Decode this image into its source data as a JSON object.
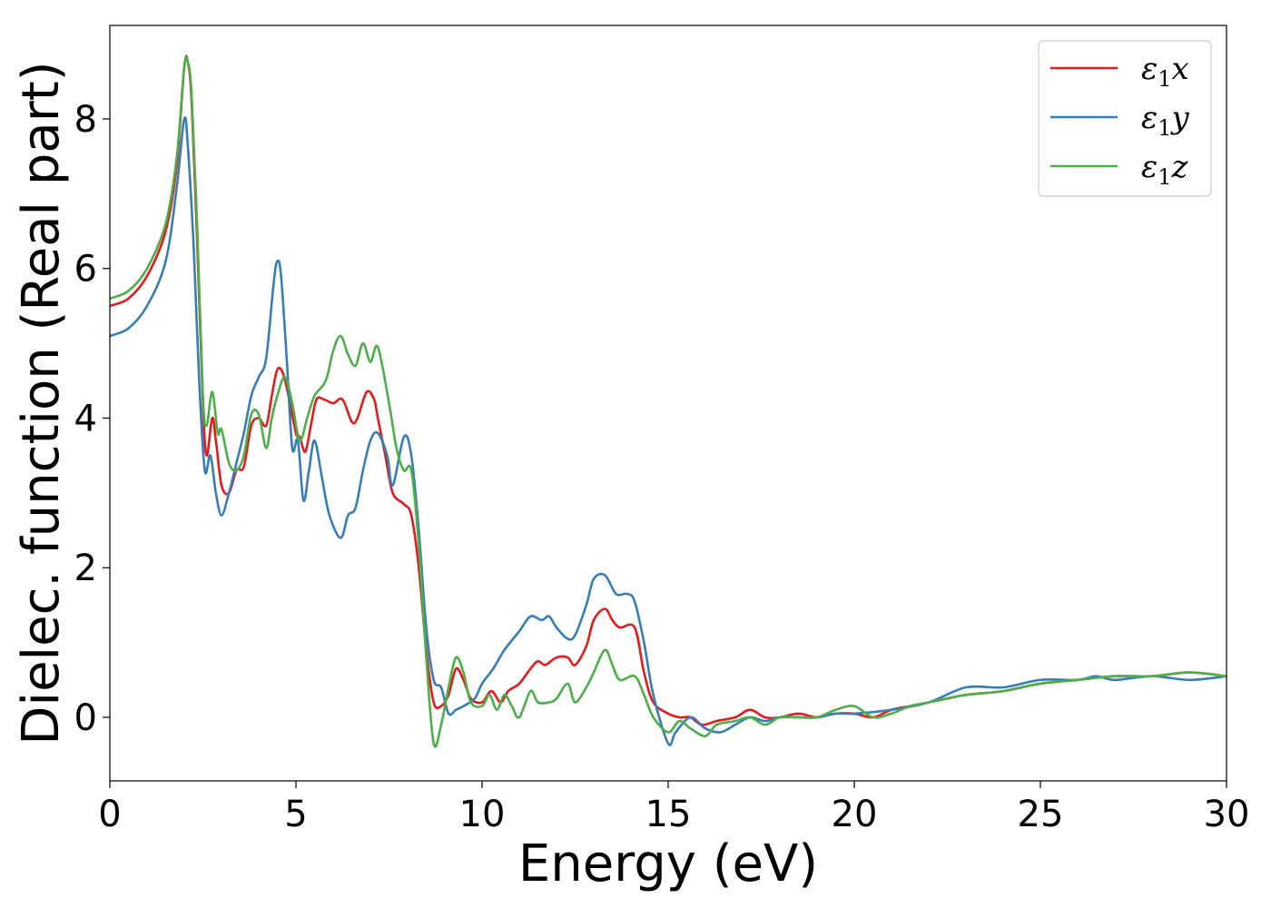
{
  "chart_data": {
    "type": "line",
    "title": "",
    "xlabel": "Energy (eV)",
    "ylabel": "Dielec. function (Real part)",
    "xlim": [
      0,
      30
    ],
    "ylim": [
      -0.85,
      9.25
    ],
    "xticks": [
      0,
      5,
      10,
      15,
      20,
      25,
      30
    ],
    "yticks": [
      0,
      2,
      4,
      6,
      8
    ],
    "grid": false,
    "legend_position": "top-right",
    "series": [
      {
        "name": "ε₁x",
        "legend_base": "ε",
        "legend_sub": "1",
        "legend_suffix": "x",
        "color": "#e41a1c",
        "points": [
          [
            0,
            5.5
          ],
          [
            0.5,
            5.6
          ],
          [
            1.0,
            5.9
          ],
          [
            1.5,
            6.5
          ],
          [
            1.8,
            7.4
          ],
          [
            2.0,
            8.7
          ],
          [
            2.1,
            8.75
          ],
          [
            2.2,
            8.2
          ],
          [
            2.35,
            6.3
          ],
          [
            2.5,
            4.2
          ],
          [
            2.6,
            3.5
          ],
          [
            2.75,
            4.0
          ],
          [
            2.85,
            3.7
          ],
          [
            3.0,
            3.1
          ],
          [
            3.2,
            3.0
          ],
          [
            3.4,
            3.3
          ],
          [
            3.6,
            3.35
          ],
          [
            3.8,
            3.9
          ],
          [
            4.0,
            4.0
          ],
          [
            4.2,
            3.9
          ],
          [
            4.35,
            4.3
          ],
          [
            4.5,
            4.65
          ],
          [
            4.65,
            4.6
          ],
          [
            4.8,
            4.3
          ],
          [
            5.0,
            3.8
          ],
          [
            5.1,
            3.75
          ],
          [
            5.25,
            3.55
          ],
          [
            5.4,
            3.9
          ],
          [
            5.55,
            4.25
          ],
          [
            5.75,
            4.25
          ],
          [
            6.0,
            4.2
          ],
          [
            6.25,
            4.25
          ],
          [
            6.5,
            3.95
          ],
          [
            6.65,
            4.0
          ],
          [
            6.9,
            4.35
          ],
          [
            7.1,
            4.25
          ],
          [
            7.2,
            4.0
          ],
          [
            7.4,
            3.5
          ],
          [
            7.6,
            3.0
          ],
          [
            7.9,
            2.85
          ],
          [
            8.1,
            2.7
          ],
          [
            8.3,
            2.0
          ],
          [
            8.5,
            0.9
          ],
          [
            8.7,
            0.2
          ],
          [
            8.9,
            0.15
          ],
          [
            9.1,
            0.3
          ],
          [
            9.3,
            0.65
          ],
          [
            9.5,
            0.5
          ],
          [
            9.7,
            0.25
          ],
          [
            10.0,
            0.2
          ],
          [
            10.25,
            0.35
          ],
          [
            10.5,
            0.2
          ],
          [
            10.7,
            0.35
          ],
          [
            11.0,
            0.45
          ],
          [
            11.3,
            0.65
          ],
          [
            11.5,
            0.75
          ],
          [
            11.7,
            0.7
          ],
          [
            12.0,
            0.8
          ],
          [
            12.3,
            0.8
          ],
          [
            12.5,
            0.7
          ],
          [
            12.8,
            0.95
          ],
          [
            13.0,
            1.3
          ],
          [
            13.3,
            1.45
          ],
          [
            13.5,
            1.3
          ],
          [
            13.7,
            1.2
          ],
          [
            14.1,
            1.2
          ],
          [
            14.35,
            0.6
          ],
          [
            14.6,
            0.2
          ],
          [
            15.0,
            0.05
          ],
          [
            15.3,
            0.0
          ],
          [
            15.6,
            0.0
          ],
          [
            15.9,
            -0.1
          ],
          [
            16.3,
            -0.05
          ],
          [
            16.8,
            0.0
          ],
          [
            17.2,
            0.1
          ],
          [
            17.6,
            0.0
          ],
          [
            18.0,
            0.0
          ],
          [
            18.5,
            0.05
          ],
          [
            19.0,
            0.0
          ],
          [
            19.5,
            0.05
          ],
          [
            20.0,
            0.05
          ],
          [
            20.5,
            0.0
          ],
          [
            21.0,
            0.1
          ],
          [
            21.5,
            0.15
          ],
          [
            22.0,
            0.2
          ],
          [
            22.5,
            0.25
          ],
          [
            23.0,
            0.3
          ],
          [
            24.0,
            0.35
          ],
          [
            25.0,
            0.45
          ],
          [
            26.0,
            0.5
          ],
          [
            27.0,
            0.55
          ],
          [
            28.0,
            0.55
          ],
          [
            29.0,
            0.6
          ],
          [
            30.0,
            0.55
          ]
        ]
      },
      {
        "name": "ε₁y",
        "legend_base": "ε",
        "legend_sub": "1",
        "legend_suffix": "y",
        "color": "#377eb8",
        "points": [
          [
            0,
            5.1
          ],
          [
            0.5,
            5.2
          ],
          [
            1.0,
            5.5
          ],
          [
            1.5,
            6.1
          ],
          [
            1.8,
            7.1
          ],
          [
            2.0,
            8.0
          ],
          [
            2.1,
            7.6
          ],
          [
            2.25,
            6.3
          ],
          [
            2.4,
            4.5
          ],
          [
            2.55,
            3.3
          ],
          [
            2.7,
            3.5
          ],
          [
            2.85,
            3.0
          ],
          [
            3.0,
            2.7
          ],
          [
            3.2,
            3.0
          ],
          [
            3.4,
            3.4
          ],
          [
            3.6,
            3.8
          ],
          [
            3.8,
            4.3
          ],
          [
            4.0,
            4.55
          ],
          [
            4.2,
            4.8
          ],
          [
            4.4,
            5.8
          ],
          [
            4.5,
            6.1
          ],
          [
            4.6,
            5.9
          ],
          [
            4.75,
            4.8
          ],
          [
            4.9,
            3.6
          ],
          [
            5.05,
            3.7
          ],
          [
            5.2,
            2.9
          ],
          [
            5.35,
            3.3
          ],
          [
            5.5,
            3.7
          ],
          [
            5.7,
            3.2
          ],
          [
            5.9,
            2.7
          ],
          [
            6.2,
            2.4
          ],
          [
            6.4,
            2.7
          ],
          [
            6.6,
            2.8
          ],
          [
            6.8,
            3.3
          ],
          [
            7.0,
            3.7
          ],
          [
            7.2,
            3.8
          ],
          [
            7.45,
            3.5
          ],
          [
            7.6,
            3.1
          ],
          [
            7.9,
            3.75
          ],
          [
            8.1,
            3.5
          ],
          [
            8.3,
            2.5
          ],
          [
            8.5,
            1.2
          ],
          [
            8.7,
            0.5
          ],
          [
            8.9,
            0.4
          ],
          [
            9.1,
            0.05
          ],
          [
            9.3,
            0.1
          ],
          [
            9.5,
            0.15
          ],
          [
            9.8,
            0.25
          ],
          [
            10.0,
            0.45
          ],
          [
            10.3,
            0.65
          ],
          [
            10.6,
            0.9
          ],
          [
            11.0,
            1.15
          ],
          [
            11.3,
            1.35
          ],
          [
            11.6,
            1.3
          ],
          [
            11.8,
            1.35
          ],
          [
            12.0,
            1.2
          ],
          [
            12.3,
            1.05
          ],
          [
            12.5,
            1.1
          ],
          [
            12.8,
            1.5
          ],
          [
            13.0,
            1.85
          ],
          [
            13.3,
            1.9
          ],
          [
            13.6,
            1.65
          ],
          [
            13.9,
            1.65
          ],
          [
            14.1,
            1.55
          ],
          [
            14.35,
            1.0
          ],
          [
            14.6,
            0.3
          ],
          [
            15.0,
            -0.35
          ],
          [
            15.2,
            -0.2
          ],
          [
            15.6,
            0.0
          ],
          [
            16.0,
            -0.15
          ],
          [
            16.4,
            -0.2
          ],
          [
            16.8,
            -0.1
          ],
          [
            17.2,
            0.0
          ],
          [
            17.6,
            -0.05
          ],
          [
            18.0,
            0.0
          ],
          [
            18.5,
            0.0
          ],
          [
            19.0,
            0.0
          ],
          [
            19.5,
            0.05
          ],
          [
            20.0,
            0.05
          ],
          [
            21.0,
            0.1
          ],
          [
            22.0,
            0.2
          ],
          [
            23.0,
            0.4
          ],
          [
            24.0,
            0.4
          ],
          [
            25.0,
            0.5
          ],
          [
            26.0,
            0.5
          ],
          [
            26.5,
            0.55
          ],
          [
            27.0,
            0.5
          ],
          [
            28.0,
            0.55
          ],
          [
            29.0,
            0.5
          ],
          [
            30.0,
            0.55
          ]
        ]
      },
      {
        "name": "ε₁z",
        "legend_base": "ε",
        "legend_sub": "1",
        "legend_suffix": "z",
        "color": "#4daf4a",
        "points": [
          [
            0,
            5.6
          ],
          [
            0.5,
            5.7
          ],
          [
            1.0,
            6.0
          ],
          [
            1.5,
            6.6
          ],
          [
            1.8,
            7.5
          ],
          [
            2.0,
            8.7
          ],
          [
            2.1,
            8.75
          ],
          [
            2.2,
            8.3
          ],
          [
            2.35,
            6.5
          ],
          [
            2.5,
            4.3
          ],
          [
            2.6,
            3.9
          ],
          [
            2.75,
            4.35
          ],
          [
            2.9,
            3.8
          ],
          [
            3.0,
            3.85
          ],
          [
            3.2,
            3.4
          ],
          [
            3.4,
            3.3
          ],
          [
            3.6,
            3.5
          ],
          [
            3.8,
            4.05
          ],
          [
            4.0,
            4.05
          ],
          [
            4.2,
            3.6
          ],
          [
            4.35,
            4.0
          ],
          [
            4.5,
            4.3
          ],
          [
            4.7,
            4.55
          ],
          [
            4.9,
            4.2
          ],
          [
            5.1,
            3.7
          ],
          [
            5.3,
            4.0
          ],
          [
            5.5,
            4.3
          ],
          [
            5.8,
            4.5
          ],
          [
            6.0,
            4.9
          ],
          [
            6.2,
            5.1
          ],
          [
            6.4,
            4.85
          ],
          [
            6.6,
            4.7
          ],
          [
            6.8,
            5.0
          ],
          [
            7.0,
            4.75
          ],
          [
            7.2,
            4.95
          ],
          [
            7.5,
            4.2
          ],
          [
            7.7,
            3.6
          ],
          [
            7.9,
            3.3
          ],
          [
            8.1,
            3.3
          ],
          [
            8.3,
            2.3
          ],
          [
            8.5,
            0.8
          ],
          [
            8.7,
            -0.35
          ],
          [
            8.9,
            -0.1
          ],
          [
            9.1,
            0.4
          ],
          [
            9.3,
            0.8
          ],
          [
            9.5,
            0.6
          ],
          [
            9.7,
            0.2
          ],
          [
            10.0,
            0.15
          ],
          [
            10.2,
            0.3
          ],
          [
            10.4,
            0.1
          ],
          [
            10.6,
            0.3
          ],
          [
            10.8,
            0.15
          ],
          [
            11.0,
            0.0
          ],
          [
            11.3,
            0.35
          ],
          [
            11.5,
            0.2
          ],
          [
            11.8,
            0.2
          ],
          [
            12.0,
            0.25
          ],
          [
            12.3,
            0.45
          ],
          [
            12.5,
            0.2
          ],
          [
            12.8,
            0.4
          ],
          [
            13.0,
            0.6
          ],
          [
            13.3,
            0.9
          ],
          [
            13.5,
            0.7
          ],
          [
            13.7,
            0.5
          ],
          [
            14.1,
            0.55
          ],
          [
            14.35,
            0.3
          ],
          [
            14.6,
            0.0
          ],
          [
            15.0,
            -0.2
          ],
          [
            15.3,
            -0.05
          ],
          [
            15.6,
            -0.15
          ],
          [
            16.0,
            -0.25
          ],
          [
            16.3,
            -0.1
          ],
          [
            16.8,
            -0.05
          ],
          [
            17.2,
            0.0
          ],
          [
            17.6,
            -0.1
          ],
          [
            18.0,
            0.0
          ],
          [
            18.5,
            0.0
          ],
          [
            19.0,
            0.0
          ],
          [
            19.5,
            0.1
          ],
          [
            20.0,
            0.15
          ],
          [
            20.5,
            0.0
          ],
          [
            21.0,
            0.05
          ],
          [
            21.5,
            0.15
          ],
          [
            22.0,
            0.2
          ],
          [
            23.0,
            0.3
          ],
          [
            24.0,
            0.35
          ],
          [
            25.0,
            0.45
          ],
          [
            26.0,
            0.5
          ],
          [
            27.0,
            0.55
          ],
          [
            28.0,
            0.55
          ],
          [
            29.0,
            0.6
          ],
          [
            30.0,
            0.55
          ]
        ]
      }
    ]
  }
}
